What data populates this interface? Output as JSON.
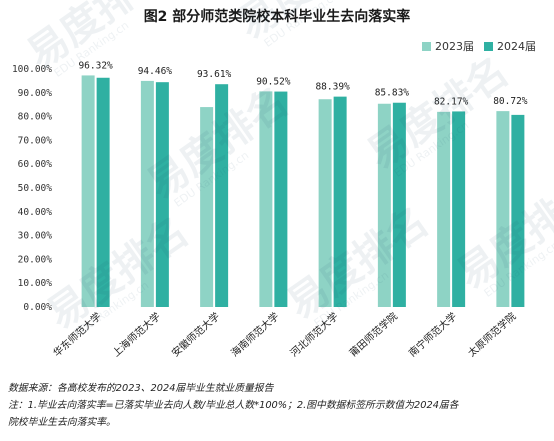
{
  "chart_data": {
    "type": "bar",
    "title": "图2 部分师范类院校本科毕业生去向落实率",
    "categories": [
      "华东师范大学",
      "上海师范大学",
      "安徽师范大学",
      "海南师范大学",
      "河北师范大学",
      "莆田师范学院",
      "南宁师范大学",
      "太原师范学院"
    ],
    "series": [
      {
        "name": "2023届",
        "values": [
          97.3,
          95.0,
          84.0,
          90.6,
          87.3,
          85.4,
          82.0,
          82.3
        ],
        "color": "#8ed3c5"
      },
      {
        "name": "2024届",
        "values": [
          96.32,
          94.46,
          93.61,
          90.52,
          88.39,
          85.83,
          82.17,
          80.72
        ],
        "color": "#2fb0a2"
      }
    ],
    "data_labels": [
      "96.32%",
      "94.46%",
      "93.61%",
      "90.52%",
      "88.39%",
      "85.83%",
      "82.17%",
      "80.72%"
    ],
    "y_ticks": [
      "0.00%",
      "10.00%",
      "20.00%",
      "30.00%",
      "40.00%",
      "50.00%",
      "60.00%",
      "70.00%",
      "80.00%",
      "90.00%",
      "100.00%"
    ],
    "ylim": [
      0,
      100
    ],
    "grid": false,
    "legend_position": "top-right"
  },
  "watermark": {
    "text": "易度排名",
    "subtext": "EDU Ranking.cn"
  },
  "footnotes": {
    "source": "数据来源：各高校发布的2023、2024届毕业生就业质量报告",
    "note_line1": "注：1.毕业去向落实率=已落实毕业去向人数/毕业总人数*100%；2.图中数据标签所示数值为2024届各",
    "note_line2": "院校毕业生去向落实率。"
  }
}
